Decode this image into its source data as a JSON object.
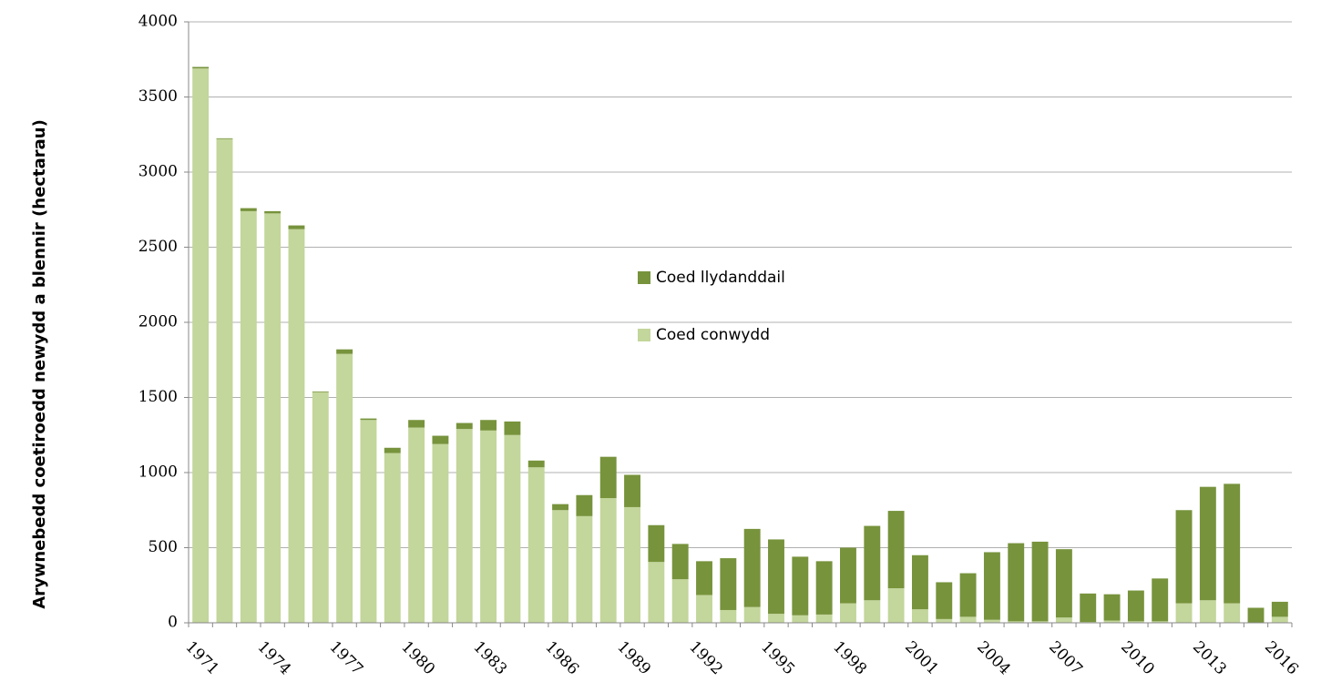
{
  "chart_data": {
    "type": "stacked_bar",
    "y_label": "Arywnebedd coetiroedd newydd a blennir (hectarau)",
    "categories": [
      "1971",
      null,
      null,
      "1974",
      null,
      null,
      "1977",
      null,
      null,
      "1980",
      null,
      null,
      "1983",
      null,
      null,
      "1986",
      null,
      null,
      "1989",
      null,
      null,
      "1992",
      null,
      null,
      "1995",
      null,
      null,
      "1998",
      null,
      null,
      "2001",
      null,
      null,
      "2004",
      null,
      null,
      "2007",
      null,
      null,
      "2010",
      null,
      null,
      "2013",
      null,
      null,
      "2016"
    ],
    "series": [
      {
        "name": "Coed llydanddail",
        "color": "#77933c",
        "values": [
          10,
          5,
          20,
          15,
          25,
          5,
          30,
          10,
          35,
          50,
          55,
          40,
          70,
          90,
          45,
          40,
          140,
          275,
          215,
          245,
          235,
          225,
          345,
          520,
          495,
          390,
          355,
          370,
          495,
          515,
          360,
          245,
          290,
          450,
          520,
          530,
          455,
          190,
          175,
          205,
          285,
          620,
          755,
          795,
          100,
          100
        ]
      },
      {
        "name": "Coed conwydd",
        "color": "#c3d69b",
        "values": [
          3690,
          3220,
          2740,
          2725,
          2620,
          1535,
          1790,
          1350,
          1130,
          1300,
          1190,
          1290,
          1280,
          1250,
          1035,
          750,
          710,
          830,
          770,
          405,
          290,
          185,
          85,
          105,
          60,
          50,
          55,
          130,
          150,
          230,
          90,
          25,
          40,
          20,
          10,
          10,
          35,
          5,
          15,
          10,
          10,
          130,
          150,
          130,
          0,
          40
        ]
      }
    ],
    "ylim": [
      0,
      4000
    ],
    "yticks": [
      0,
      500,
      1000,
      1500,
      2000,
      2500,
      3000,
      3500,
      4000
    ],
    "grid": true
  }
}
